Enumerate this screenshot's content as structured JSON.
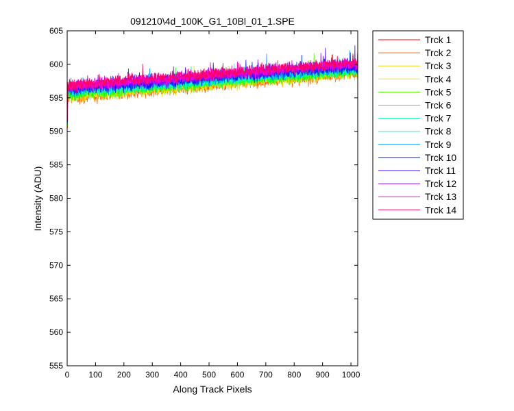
{
  "chart_data": {
    "type": "line",
    "title": "091210\\4d_100K_G1_10Bl_01_1.SPE",
    "xlabel": "Along Track Pixels",
    "ylabel": "Intensity (ADU)",
    "xlim": [
      0,
      1024
    ],
    "ylim": [
      555,
      605
    ],
    "xticks": [
      0,
      100,
      200,
      300,
      400,
      500,
      600,
      700,
      800,
      900,
      1000
    ],
    "yticks": [
      555,
      560,
      565,
      570,
      575,
      580,
      585,
      590,
      595,
      600,
      605
    ],
    "grid": false,
    "legend_position": "outside-right-top",
    "x_range": [
      1,
      1024
    ],
    "series": [
      {
        "name": "Trck 1",
        "color": "#ff0000",
        "y_start": 595.6,
        "y_end": 599.2
      },
      {
        "name": "Trck 2",
        "color": "#ff6a00",
        "y_start": 594.9,
        "y_end": 598.6
      },
      {
        "name": "Trck 3",
        "color": "#ffd400",
        "y_start": 595.1,
        "y_end": 598.8
      },
      {
        "name": "Trck 4",
        "color": "#c8ff00",
        "y_start": 595.3,
        "y_end": 598.9
      },
      {
        "name": "Trck 5",
        "color": "#55ff00",
        "y_start": 595.4,
        "y_end": 599.0
      },
      {
        "name": "Trck 6",
        "color": "#00ff2a",
        "y_start": 595.6,
        "y_end": 599.1
      },
      {
        "name": "Trck 7",
        "color": "#00ff9a",
        "y_start": 595.8,
        "y_end": 599.3
      },
      {
        "name": "Trck 8",
        "color": "#00ffe6",
        "y_start": 596.0,
        "y_end": 599.4
      },
      {
        "name": "Trck 9",
        "color": "#0099ff",
        "y_start": 596.1,
        "y_end": 599.6
      },
      {
        "name": "Trck 10",
        "color": "#0022ff",
        "y_start": 596.2,
        "y_end": 599.7
      },
      {
        "name": "Trck 11",
        "color": "#5500ff",
        "y_start": 596.5,
        "y_end": 600.0
      },
      {
        "name": "Trck 12",
        "color": "#aa00ff",
        "y_start": 596.6,
        "y_end": 600.1
      },
      {
        "name": "Trck 13",
        "color": "#ff00dd",
        "y_start": 596.7,
        "y_end": 600.2
      },
      {
        "name": "Trck 14",
        "color": "#ff0066",
        "y_start": 596.9,
        "y_end": 600.2
      }
    ]
  }
}
